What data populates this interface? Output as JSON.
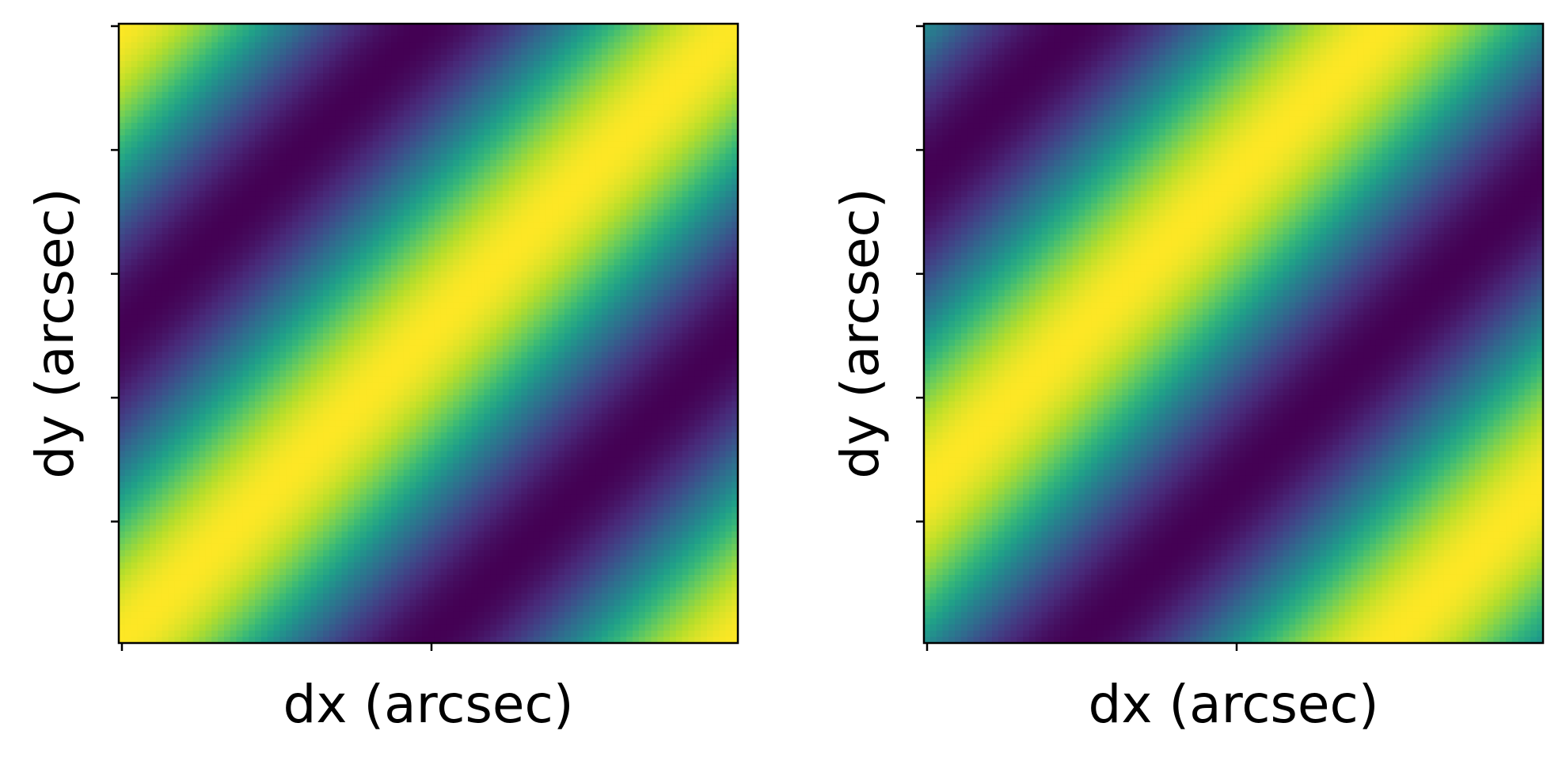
{
  "colormap": {
    "name": "viridis",
    "stops": [
      "#440154",
      "#482878",
      "#3e4989",
      "#31688e",
      "#26828e",
      "#1f9e89",
      "#35b779",
      "#6ece58",
      "#b5de2b",
      "#fde725"
    ]
  },
  "chart_data": [
    {
      "type": "heatmap",
      "title": "",
      "xlabel": "dx (arcsec)",
      "ylabel": "dy (arcsec)",
      "grid": false,
      "x_ticks": 2,
      "y_ticks": 5,
      "tick_labels_shown": false,
      "resolution": 100,
      "pattern": "diagonal stripes along the main diagonal; bright ridge along the centre, dark bands beside it, teal background",
      "function": "cos",
      "stripe_direction": [
        1,
        -1
      ],
      "period": 1.0,
      "phase": 0.0,
      "value_range": [
        0,
        1
      ]
    },
    {
      "type": "heatmap",
      "title": "",
      "xlabel": "dx (arcsec)",
      "ylabel": "dy (arcsec)",
      "grid": false,
      "x_ticks": 2,
      "y_ticks": 5,
      "tick_labels_shown": false,
      "resolution": 100,
      "pattern": "diagonal stripes along the main diagonal; dark centre band, bright bands toward the top-left and bottom-right",
      "function": "cos",
      "stripe_direction": [
        1,
        -1
      ],
      "period": 1.0,
      "phase": 0.25,
      "value_range": [
        0,
        1
      ]
    }
  ]
}
